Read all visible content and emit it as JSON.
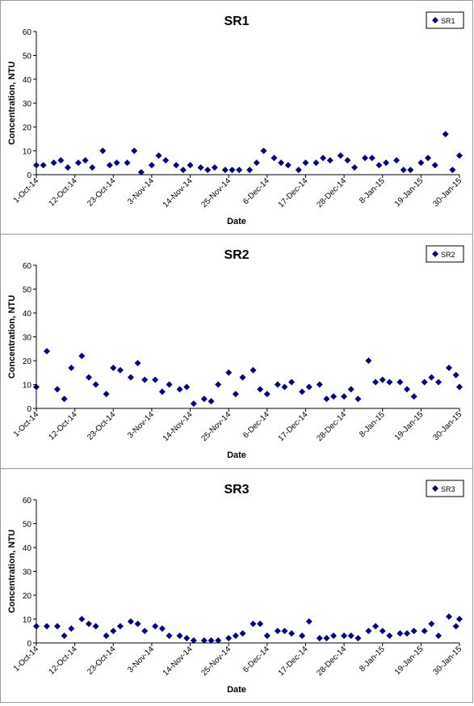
{
  "chart_data": [
    {
      "type": "scatter",
      "title": "SR1",
      "xlabel": "Date",
      "ylabel": "Concentration, NTU",
      "ylim": [
        0,
        60
      ],
      "yticks": [
        0,
        10,
        20,
        30,
        40,
        50,
        60
      ],
      "xlim": [
        "2014-10-01",
        "2015-01-30"
      ],
      "xtick_labels": [
        "1-Oct-14",
        "12-Oct-14",
        "23-Oct-14",
        "3-Nov-14",
        "14-Nov-14",
        "25-Nov-14",
        "6-Dec-14",
        "17-Dec-14",
        "28-Dec-14",
        "8-Jan-15",
        "19-Jan-15",
        "30-Jan-15"
      ],
      "grid": false,
      "legend_position": "top-right",
      "marker_color": "#000080",
      "series": [
        {
          "name": "SR1",
          "x": [
            "2014-10-01",
            "2014-10-03",
            "2014-10-06",
            "2014-10-08",
            "2014-10-10",
            "2014-10-13",
            "2014-10-15",
            "2014-10-17",
            "2014-10-20",
            "2014-10-22",
            "2014-10-24",
            "2014-10-27",
            "2014-10-29",
            "2014-10-31",
            "2014-11-03",
            "2014-11-05",
            "2014-11-07",
            "2014-11-10",
            "2014-11-12",
            "2014-11-14",
            "2014-11-17",
            "2014-11-19",
            "2014-11-21",
            "2014-11-24",
            "2014-11-26",
            "2014-11-28",
            "2014-12-01",
            "2014-12-03",
            "2014-12-05",
            "2014-12-08",
            "2014-12-10",
            "2014-12-12",
            "2014-12-15",
            "2014-12-17",
            "2014-12-20",
            "2014-12-22",
            "2014-12-24",
            "2014-12-27",
            "2014-12-29",
            "2014-12-31",
            "2015-01-03",
            "2015-01-05",
            "2015-01-07",
            "2015-01-09",
            "2015-01-12",
            "2015-01-14",
            "2015-01-16",
            "2015-01-19",
            "2015-01-21",
            "2015-01-23",
            "2015-01-26",
            "2015-01-28",
            "2015-01-30"
          ],
          "y": [
            4,
            4,
            5,
            6,
            3,
            5,
            6,
            3,
            10,
            4,
            5,
            5,
            10,
            1,
            4,
            8,
            6,
            4,
            2,
            4,
            3,
            2,
            3,
            2,
            2,
            2,
            2,
            5,
            10,
            7,
            5,
            4,
            2,
            5,
            5,
            7,
            6,
            8,
            6,
            3,
            7,
            7,
            4,
            5,
            6,
            2,
            2,
            5,
            7,
            4,
            17,
            2,
            8
          ]
        }
      ]
    },
    {
      "type": "scatter",
      "title": "SR2",
      "xlabel": "Date",
      "ylabel": "Concentration, NTU",
      "ylim": [
        0,
        60
      ],
      "yticks": [
        0,
        10,
        20,
        30,
        40,
        50,
        60
      ],
      "xlim": [
        "2014-10-01",
        "2015-01-30"
      ],
      "xtick_labels": [
        "1-Oct-14",
        "12-Oct-14",
        "23-Oct-14",
        "3-Nov-14",
        "14-Nov-14",
        "25-Nov-14",
        "6-Dec-14",
        "17-Dec-14",
        "28-Dec-14",
        "8-Jan-15",
        "19-Jan-15",
        "30-Jan-15"
      ],
      "grid": false,
      "legend_position": "top-right",
      "marker_color": "#000080",
      "series": [
        {
          "name": "SR2",
          "x": [
            "2014-10-01",
            "2014-10-04",
            "2014-10-07",
            "2014-10-09",
            "2014-10-11",
            "2014-10-14",
            "2014-10-16",
            "2014-10-18",
            "2014-10-21",
            "2014-10-23",
            "2014-10-25",
            "2014-10-28",
            "2014-10-30",
            "2014-11-01",
            "2014-11-04",
            "2014-11-06",
            "2014-11-08",
            "2014-11-11",
            "2014-11-13",
            "2014-11-15",
            "2014-11-18",
            "2014-11-20",
            "2014-11-22",
            "2014-11-25",
            "2014-11-27",
            "2014-11-29",
            "2014-12-02",
            "2014-12-04",
            "2014-12-06",
            "2014-12-09",
            "2014-12-11",
            "2014-12-13",
            "2014-12-16",
            "2014-12-18",
            "2014-12-21",
            "2014-12-23",
            "2014-12-25",
            "2014-12-28",
            "2014-12-30",
            "2015-01-01",
            "2015-01-04",
            "2015-01-06",
            "2015-01-08",
            "2015-01-10",
            "2015-01-13",
            "2015-01-15",
            "2015-01-17",
            "2015-01-20",
            "2015-01-22",
            "2015-01-24",
            "2015-01-27",
            "2015-01-29",
            "2015-01-30"
          ],
          "y": [
            9,
            24,
            8,
            4,
            17,
            22,
            13,
            10,
            6,
            17,
            16,
            13,
            19,
            12,
            12,
            7,
            10,
            8,
            9,
            2,
            4,
            3,
            10,
            15,
            6,
            13,
            16,
            8,
            6,
            10,
            9,
            11,
            7,
            9,
            10,
            4,
            5,
            5,
            8,
            4,
            20,
            11,
            12,
            11,
            11,
            8,
            5,
            11,
            13,
            11,
            17,
            14,
            9
          ]
        }
      ]
    },
    {
      "type": "scatter",
      "title": "SR3",
      "xlabel": "Date",
      "ylabel": "Concentration, NTU",
      "ylim": [
        0,
        60
      ],
      "yticks": [
        0,
        10,
        20,
        30,
        40,
        50,
        60
      ],
      "xlim": [
        "2014-10-01",
        "2015-01-30"
      ],
      "xtick_labels": [
        "1-Oct-14",
        "12-Oct-14",
        "23-Oct-14",
        "3-Nov-14",
        "14-Nov-14",
        "25-Nov-14",
        "6-Dec-14",
        "17-Dec-14",
        "28-Dec-14",
        "8-Jan-15",
        "19-Jan-15",
        "30-Jan-15"
      ],
      "grid": false,
      "legend_position": "top-right",
      "marker_color": "#000080",
      "series": [
        {
          "name": "SR3",
          "x": [
            "2014-10-01",
            "2014-10-04",
            "2014-10-07",
            "2014-10-09",
            "2014-10-11",
            "2014-10-14",
            "2014-10-16",
            "2014-10-18",
            "2014-10-21",
            "2014-10-23",
            "2014-10-25",
            "2014-10-28",
            "2014-10-30",
            "2014-11-01",
            "2014-11-04",
            "2014-11-06",
            "2014-11-08",
            "2014-11-11",
            "2014-11-13",
            "2014-11-15",
            "2014-11-18",
            "2014-11-20",
            "2014-11-22",
            "2014-11-25",
            "2014-11-27",
            "2014-11-29",
            "2014-12-02",
            "2014-12-04",
            "2014-12-06",
            "2014-12-09",
            "2014-12-11",
            "2014-12-13",
            "2014-12-16",
            "2014-12-18",
            "2014-12-21",
            "2014-12-23",
            "2014-12-25",
            "2014-12-28",
            "2014-12-30",
            "2015-01-01",
            "2015-01-04",
            "2015-01-06",
            "2015-01-08",
            "2015-01-10",
            "2015-01-13",
            "2015-01-15",
            "2015-01-17",
            "2015-01-20",
            "2015-01-22",
            "2015-01-24",
            "2015-01-27",
            "2015-01-29",
            "2015-01-30"
          ],
          "y": [
            7,
            7,
            7,
            3,
            6,
            10,
            8,
            7,
            3,
            5,
            7,
            9,
            8,
            5,
            7,
            6,
            3,
            3,
            2,
            1,
            1,
            1,
            1,
            2,
            3,
            4,
            8,
            8,
            3,
            5,
            5,
            4,
            3,
            9,
            2,
            2,
            3,
            3,
            3,
            2,
            5,
            7,
            5,
            3,
            4,
            4,
            5,
            5,
            8,
            3,
            11,
            7,
            10
          ]
        }
      ]
    }
  ]
}
